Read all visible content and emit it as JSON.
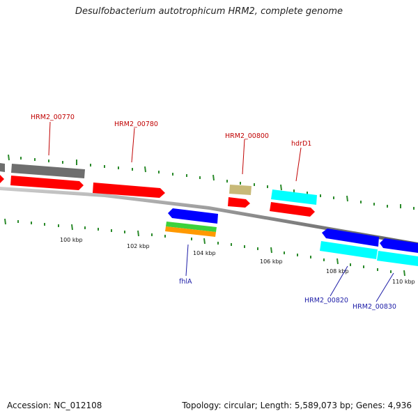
{
  "header": {
    "title": "Desulfobacterium autotrophicum HRM2, complete genome"
  },
  "footer": {
    "accession": "Accession: NC_012108",
    "stats": "Topology: circular; Length: 5,589,073 bp; Genes: 4,936"
  },
  "scale_labels": [
    "100 kbp",
    "102 kbp",
    "104 kbp",
    "106 kbp",
    "108 kbp",
    "110 kbp"
  ],
  "gene_labels": {
    "hrm2_00770": "HRM2_00770",
    "hrm2_00780": "HRM2_00780",
    "hrm2_00800": "HRM2_00800",
    "hdrd1": "hdrD1",
    "fhla": "fhlA",
    "hrm2_00820": "HRM2_00820",
    "hrm2_00830": "HRM2_00830"
  },
  "colors": {
    "red": "#ff0000",
    "gray": "#707070",
    "blue": "#0000ff",
    "cyan": "#00ffff",
    "olive": "#c8b978",
    "green": "#3cd23c",
    "orange": "#ff9900",
    "tick": "#2a8a2a",
    "backbone": "#8a8a8a"
  }
}
